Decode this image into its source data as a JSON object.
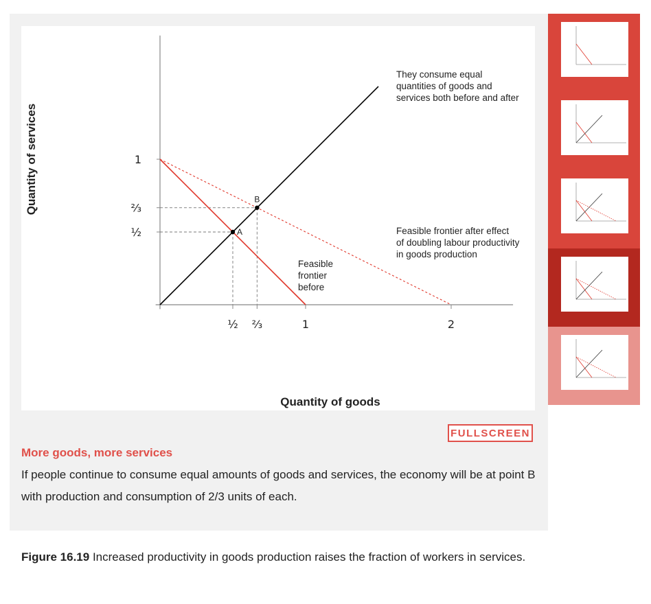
{
  "chart_data": {
    "type": "line",
    "xlabel": "Quantity of goods",
    "ylabel": "Quantity of services",
    "x_ticks": [
      "½",
      "⅔",
      "1",
      "2"
    ],
    "x_tick_values": [
      0.5,
      0.6667,
      1,
      2
    ],
    "y_ticks": [
      "1",
      "⅔",
      "½"
    ],
    "y_tick_values": [
      1,
      0.6667,
      0.5
    ],
    "xlim": [
      0,
      2.5
    ],
    "ylim": [
      0,
      1.85
    ],
    "series": [
      {
        "name": "",
        "style": "solid",
        "color": "#000000",
        "points": [
          [
            0,
            0
          ],
          [
            1.5,
            1.5
          ]
        ]
      },
      {
        "name": "",
        "style": "solid",
        "color": "#e0372b",
        "points": [
          [
            0,
            1
          ],
          [
            1,
            0
          ]
        ]
      },
      {
        "name": "",
        "style": "dashed",
        "color": "#e0372b",
        "points": [
          [
            0,
            1
          ],
          [
            2,
            0
          ]
        ]
      }
    ],
    "points": [
      {
        "label": "A",
        "x": 0.5,
        "y": 0.5
      },
      {
        "label": "B",
        "x": 0.6667,
        "y": 0.6667
      }
    ],
    "annotations": [
      {
        "lines": [
          "They consume equal",
          "quantities of goods and",
          "services both before and after"
        ]
      },
      {
        "lines": [
          "Feasible frontier after effect",
          "of doubling labour productivity",
          "in goods production"
        ]
      },
      {
        "lines": [
          "Feasible",
          "frontier",
          "before"
        ]
      }
    ]
  },
  "caption": {
    "title": "More goods, more services",
    "text": "If people continue to consume equal amounts of goods and services, the economy will be at point B with production and consumption of 2/3 units of each."
  },
  "fullscreen_label": "FULLSCREEN",
  "figure": {
    "label": "Figure 16.19",
    "text": "Increased productivity in goods production raises the fraction of workers in services."
  },
  "thumbnails": [
    {
      "bg": "#d9453b",
      "selected": false
    },
    {
      "bg": "#d9453b",
      "selected": false
    },
    {
      "bg": "#d9453b",
      "selected": false
    },
    {
      "bg": "#b3281f",
      "selected": false
    },
    {
      "bg": "#e8948e",
      "selected": true
    }
  ]
}
